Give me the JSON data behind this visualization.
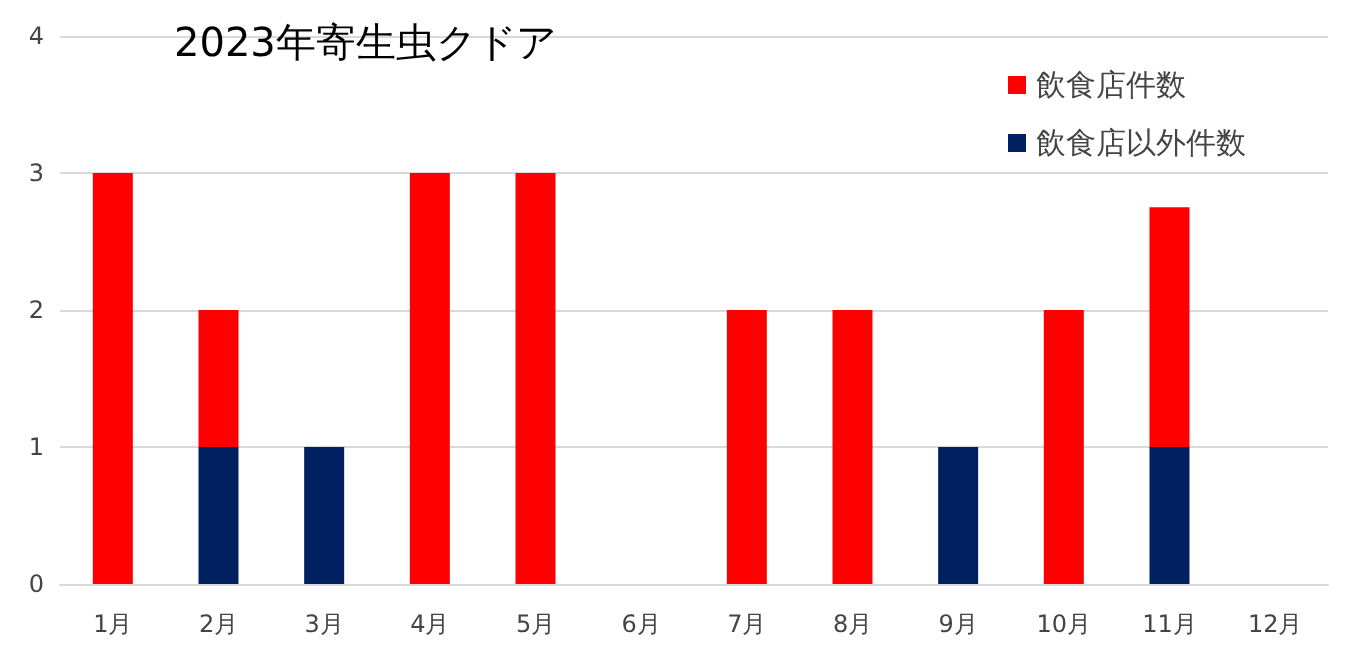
{
  "chart_data": {
    "type": "bar",
    "title": "2023年寄生虫クドア",
    "categories": [
      "1月",
      "2月",
      "3月",
      "4月",
      "5月",
      "6月",
      "7月",
      "8月",
      "9月",
      "10月",
      "11月",
      "12月"
    ],
    "stacked": true,
    "series": [
      {
        "name": "飲食店以外件数",
        "color": "#002060",
        "values": [
          0,
          1,
          1,
          0,
          0,
          0,
          0,
          0,
          1,
          0,
          1,
          0
        ]
      },
      {
        "name": "飲食店件数",
        "color": "#ff0000",
        "values": [
          3,
          1,
          0,
          3,
          3,
          0,
          2,
          2,
          0,
          2,
          1.75,
          0
        ]
      }
    ],
    "ylim": [
      0,
      4
    ],
    "yticks": [
      0,
      1,
      2,
      3,
      4
    ],
    "grid": "y",
    "legend": "top right"
  }
}
